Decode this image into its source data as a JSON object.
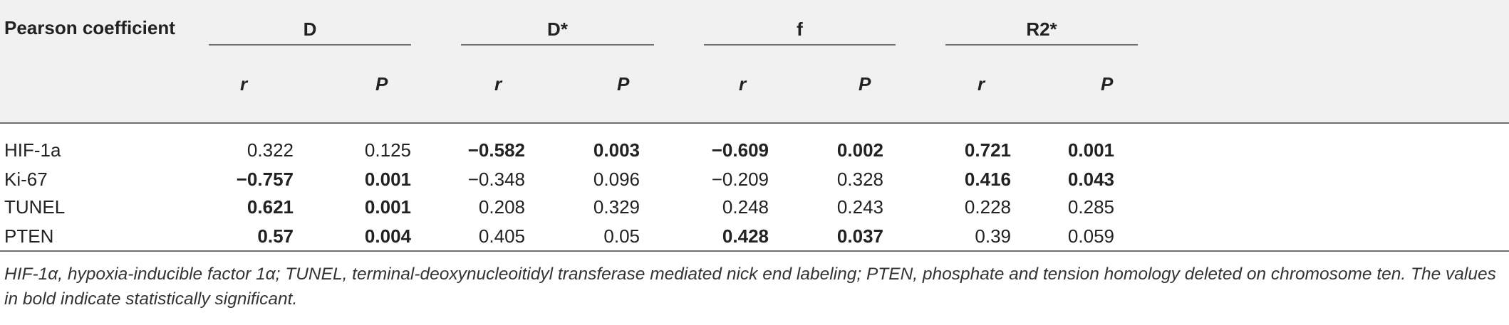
{
  "table": {
    "corner_header": "Pearson coefficient",
    "groups": [
      {
        "label": "D"
      },
      {
        "label": "D*"
      },
      {
        "label": "f"
      },
      {
        "label": "R2*"
      }
    ],
    "sub_headers": [
      "r",
      "P",
      "r",
      "P",
      "r",
      "P",
      "r",
      "P"
    ],
    "rows": [
      {
        "label": "HIF-1a",
        "cells": [
          {
            "v": "0.322",
            "bold": false
          },
          {
            "v": "0.125",
            "bold": false
          },
          {
            "v": "−0.582",
            "bold": true
          },
          {
            "v": "0.003",
            "bold": true
          },
          {
            "v": "−0.609",
            "bold": true
          },
          {
            "v": "0.002",
            "bold": true
          },
          {
            "v": "0.721",
            "bold": true
          },
          {
            "v": "0.001",
            "bold": true
          }
        ]
      },
      {
        "label": "Ki-67",
        "cells": [
          {
            "v": "−0.757",
            "bold": true
          },
          {
            "v": "0.001",
            "bold": true
          },
          {
            "v": "−0.348",
            "bold": false
          },
          {
            "v": "0.096",
            "bold": false
          },
          {
            "v": "−0.209",
            "bold": false
          },
          {
            "v": "0.328",
            "bold": false
          },
          {
            "v": "0.416",
            "bold": true
          },
          {
            "v": "0.043",
            "bold": true
          }
        ]
      },
      {
        "label": "TUNEL",
        "cells": [
          {
            "v": "0.621",
            "bold": true
          },
          {
            "v": "0.001",
            "bold": true
          },
          {
            "v": "0.208",
            "bold": false
          },
          {
            "v": "0.329",
            "bold": false
          },
          {
            "v": "0.248",
            "bold": false
          },
          {
            "v": "0.243",
            "bold": false
          },
          {
            "v": "0.228",
            "bold": false
          },
          {
            "v": "0.285",
            "bold": false
          }
        ]
      },
      {
        "label": "PTEN",
        "cells": [
          {
            "v": "0.57",
            "bold": true
          },
          {
            "v": "0.004",
            "bold": true
          },
          {
            "v": "0.405",
            "bold": false
          },
          {
            "v": "0.05",
            "bold": false
          },
          {
            "v": "0.428",
            "bold": true
          },
          {
            "v": "0.037",
            "bold": true
          },
          {
            "v": "0.39",
            "bold": false
          },
          {
            "v": "0.059",
            "bold": false
          }
        ]
      }
    ],
    "footnote": "HIF-1α, hypoxia-inducible factor 1α; TUNEL, terminal-deoxynucleoitidyl transferase mediated nick end labeling; PTEN, phosphate and tension homology deleted on chromosome ten. The values in bold indicate statistically significant."
  }
}
